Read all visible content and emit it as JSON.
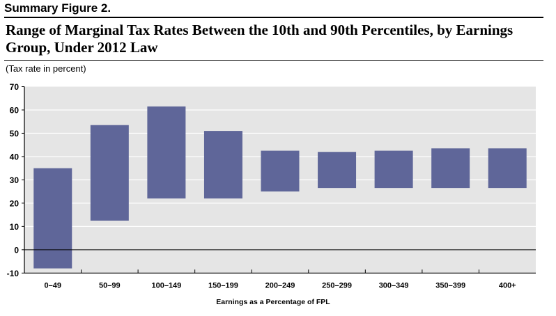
{
  "figure_label": "Summary Figure 2.",
  "title": "Range of Marginal Tax Rates Between the 10th and 90th Percentiles, by Earnings Group, Under 2012 Law",
  "units_label": "(Tax rate in percent)",
  "colors": {
    "bar": "#5f6699",
    "plot_bg": "#e5e5e5"
  },
  "chart_data": {
    "type": "bar",
    "subtype": "floating range",
    "xlabel": "Earnings as a Percentage of FPL",
    "ylabel": "(Tax rate in percent)",
    "ylim": [
      -10,
      70
    ],
    "yticks": [
      -10,
      0,
      10,
      20,
      30,
      40,
      50,
      60,
      70
    ],
    "grid": true,
    "categories": [
      "0–49",
      "50–99",
      "100–149",
      "150–199",
      "200–249",
      "250–299",
      "300–349",
      "350–399",
      "400+"
    ],
    "low": [
      -8,
      12.5,
      22,
      22,
      25,
      26.5,
      26.5,
      26.5,
      26.5
    ],
    "high": [
      35,
      53.5,
      61.5,
      51,
      42.5,
      42,
      42.5,
      43.5,
      43.5
    ]
  }
}
